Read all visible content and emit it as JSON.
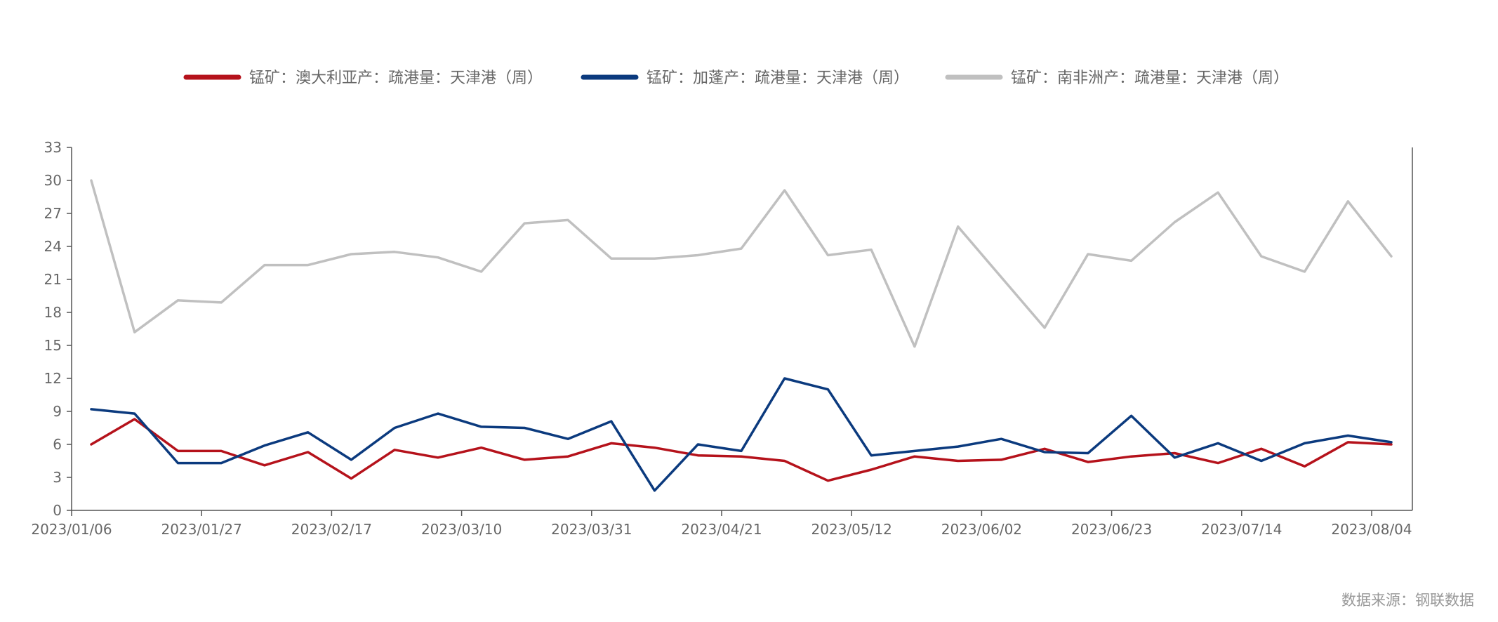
{
  "chart_data": {
    "type": "line",
    "title": "",
    "xlabel": "",
    "ylabel": "",
    "ylim": [
      0,
      33
    ],
    "yticks": [
      0,
      3,
      6,
      9,
      12,
      15,
      18,
      21,
      24,
      27,
      30,
      33
    ],
    "x": [
      "2023/01/06",
      "2023/01/13",
      "2023/01/20",
      "2023/01/27",
      "2023/02/03",
      "2023/02/10",
      "2023/02/17",
      "2023/02/24",
      "2023/03/03",
      "2023/03/10",
      "2023/03/17",
      "2023/03/24",
      "2023/03/31",
      "2023/04/07",
      "2023/04/14",
      "2023/04/21",
      "2023/04/28",
      "2023/05/05",
      "2023/05/12",
      "2023/05/19",
      "2023/05/26",
      "2023/06/02",
      "2023/06/09",
      "2023/06/16",
      "2023/06/23",
      "2023/06/30",
      "2023/07/07",
      "2023/07/14",
      "2023/07/21",
      "2023/07/28",
      "2023/08/04"
    ],
    "xtick_labels": [
      "2023/01/06",
      "2023/01/27",
      "2023/02/17",
      "2023/03/10",
      "2023/03/31",
      "2023/04/21",
      "2023/05/12",
      "2023/06/02",
      "2023/06/23",
      "2023/07/14",
      "2023/08/04"
    ],
    "grid": false,
    "legend_position": "top",
    "series": [
      {
        "name": "锰矿：澳大利亚产：疏港量：天津港（周）",
        "color": "#b5121b",
        "values": [
          6.0,
          8.3,
          5.4,
          5.4,
          4.1,
          5.3,
          2.9,
          5.5,
          4.8,
          5.7,
          4.6,
          4.9,
          6.1,
          5.7,
          5.0,
          4.9,
          4.5,
          2.7,
          3.7,
          4.9,
          4.5,
          4.6,
          5.6,
          4.4,
          4.9,
          5.2,
          4.3,
          5.6,
          4.0,
          6.2,
          6.0
        ]
      },
      {
        "name": "锰矿：加蓬产：疏港量：天津港（周）",
        "color": "#0b3a7e",
        "values": [
          9.2,
          8.8,
          4.3,
          4.3,
          5.9,
          7.1,
          4.6,
          7.5,
          8.8,
          7.6,
          7.5,
          6.5,
          8.1,
          1.8,
          6.0,
          5.4,
          12.0,
          11.0,
          5.0,
          5.4,
          5.8,
          6.5,
          5.3,
          5.2,
          8.6,
          4.8,
          6.1,
          4.5,
          6.1,
          6.8,
          6.2
        ]
      },
      {
        "name": "锰矿：南非洲产：疏港量：天津港（周）",
        "color": "#c0c0c0",
        "values": [
          30.0,
          16.2,
          19.1,
          18.9,
          22.3,
          22.3,
          23.3,
          23.5,
          23.0,
          21.7,
          26.1,
          26.4,
          22.9,
          22.9,
          23.2,
          23.8,
          29.1,
          23.2,
          23.7,
          14.9,
          25.8,
          21.2,
          16.6,
          23.3,
          22.7,
          26.2,
          28.9,
          23.1,
          21.7,
          28.1,
          23.1
        ]
      }
    ]
  },
  "footer": {
    "source": "数据来源：钢联数据"
  }
}
